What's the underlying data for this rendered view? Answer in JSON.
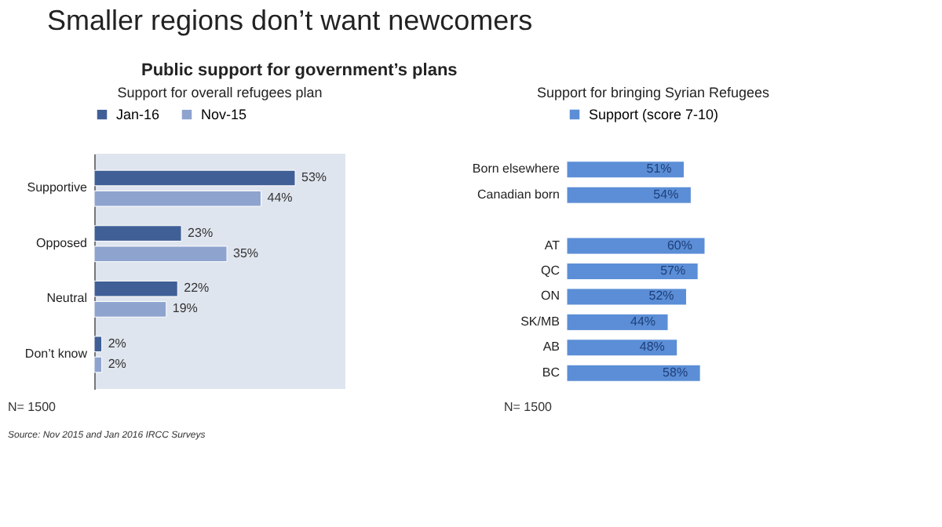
{
  "chart_data": [
    {
      "type": "bar",
      "orientation": "horizontal",
      "title": "Support for overall refugees plan",
      "categories": [
        "Supportive",
        "Opposed",
        "Neutral",
        "Don’t know"
      ],
      "series": [
        {
          "name": "Jan-16",
          "color": "#3f5f96",
          "values": [
            53,
            23,
            22,
            2
          ],
          "value_labels": [
            "53%",
            "23%",
            "22%",
            "2%"
          ]
        },
        {
          "name": "Nov-15",
          "color": "#8ea4cf",
          "values": [
            44,
            35,
            19,
            2
          ],
          "value_labels": [
            "44%",
            "35%",
            "19%",
            "2%"
          ]
        }
      ],
      "legend": "top",
      "annotations": [
        "Smaller regions don’t want newcomers",
        "Public support for government’s plans",
        "N= 1500",
        "Source: Nov 2015 and Jan 2016 IRCC Surveys"
      ]
    },
    {
      "type": "bar",
      "orientation": "horizontal",
      "title": "Support for bringing Syrian Refugees",
      "categories": [
        "Born elsewhere",
        "Canadian born",
        null,
        "AT",
        "QC",
        "ON",
        "SK/MB",
        "AB",
        "BC"
      ],
      "series": [
        {
          "name": "Support (score 7-10)",
          "color": "#5b8ed6",
          "values": [
            51,
            54,
            null,
            60,
            57,
            52,
            44,
            48,
            58
          ],
          "value_labels": [
            "51%",
            "54%",
            null,
            "60%",
            "57%",
            "52%",
            "44%",
            "48%",
            "58%"
          ]
        }
      ],
      "legend": "top",
      "annotations": [
        "N= 1500"
      ]
    }
  ]
}
